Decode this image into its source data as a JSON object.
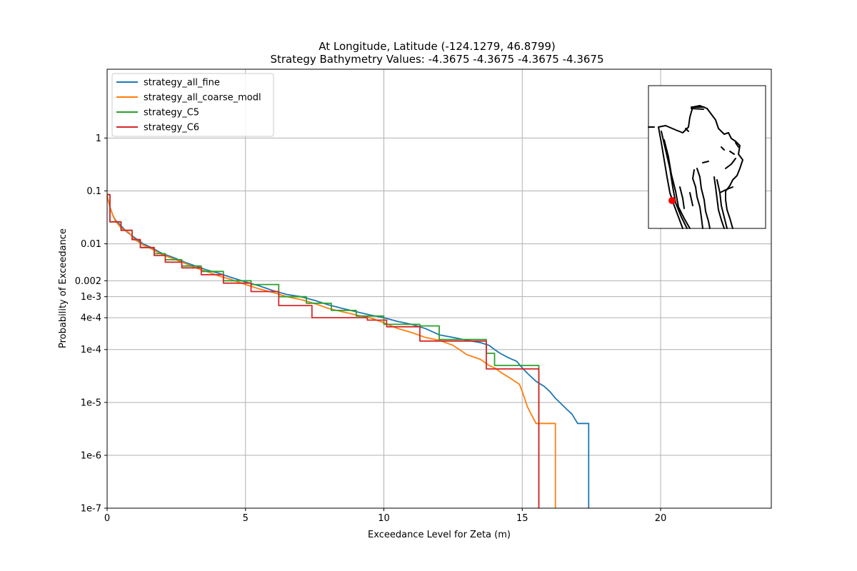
{
  "chart_data": {
    "type": "line",
    "title": "At Longitude, Latitude (-124.1279,  46.8799)",
    "subtitle": "Strategy Bathymetry Values:   -4.3675   -4.3675   -4.3675   -4.3675",
    "xlabel": "Exceedance Level for Zeta (m)",
    "ylabel": "Probability of Exceedance",
    "xlim": [
      0,
      24
    ],
    "ylim": [
      1e-07,
      20
    ],
    "yscale": "log",
    "grid": true,
    "legend_position": "top-left",
    "xticks": [
      {
        "value": 0,
        "label": "0"
      },
      {
        "value": 5,
        "label": "5"
      },
      {
        "value": 10,
        "label": "10"
      },
      {
        "value": 15,
        "label": "15"
      },
      {
        "value": 20,
        "label": "20"
      }
    ],
    "yticks": [
      {
        "value": 1e-07,
        "label": "1e-7"
      },
      {
        "value": 1e-06,
        "label": "1e-6"
      },
      {
        "value": 1e-05,
        "label": "1e-5"
      },
      {
        "value": 0.0001,
        "label": "1e-4"
      },
      {
        "value": 0.0004,
        "label": "4e-4"
      },
      {
        "value": 0.001,
        "label": "1e-3"
      },
      {
        "value": 0.002,
        "label": "0.002"
      },
      {
        "value": 0.01,
        "label": "0.01"
      },
      {
        "value": 0.1,
        "label": "0.1"
      },
      {
        "value": 1,
        "label": "1"
      }
    ],
    "series": [
      {
        "name": "strategy_all_fine",
        "color": "#1f77b4",
        "x": [
          0,
          0.1,
          0.2,
          0.3,
          0.5,
          0.7,
          1.0,
          1.3,
          1.6,
          2.0,
          2.4,
          2.8,
          3.2,
          3.6,
          4.0,
          4.5,
          5.0,
          5.5,
          6.0,
          6.5,
          7.0,
          7.5,
          8.0,
          8.5,
          9.0,
          9.5,
          10.0,
          10.5,
          11.0,
          11.5,
          12.0,
          12.5,
          13.0,
          13.5,
          13.8,
          14.0,
          14.2,
          14.5,
          14.8,
          15.0,
          15.2,
          15.5,
          15.8,
          16.0,
          16.2,
          16.4,
          16.6,
          16.8,
          17.0,
          17.2,
          17.4,
          17.4
        ],
        "y": [
          0.08,
          0.05,
          0.035,
          0.028,
          0.022,
          0.017,
          0.013,
          0.01,
          0.0085,
          0.0065,
          0.0055,
          0.0045,
          0.0038,
          0.0032,
          0.0028,
          0.0023,
          0.0019,
          0.0016,
          0.0013,
          0.0011,
          0.001,
          0.00085,
          0.0007,
          0.0006,
          0.00052,
          0.00045,
          0.0004,
          0.00034,
          0.0003,
          0.00025,
          0.00019,
          0.00017,
          0.00015,
          0.000135,
          0.00012,
          0.0001,
          8.5e-05,
          7e-05,
          6e-05,
          4.5e-05,
          3.5e-05,
          2.5e-05,
          2e-05,
          1.6e-05,
          1.2e-05,
          9.5e-06,
          7.5e-06,
          6e-06,
          4e-06,
          4e-06,
          4e-06,
          1e-07
        ]
      },
      {
        "name": "strategy_all_coarse_modl",
        "color": "#ff7f0e",
        "x": [
          0,
          0.1,
          0.2,
          0.3,
          0.5,
          0.8,
          1.0,
          1.3,
          1.6,
          2.0,
          2.4,
          2.8,
          3.2,
          3.6,
          4.0,
          4.5,
          5.0,
          5.5,
          6.0,
          6.5,
          7.0,
          7.5,
          8.0,
          8.5,
          9.0,
          9.5,
          10.0,
          10.5,
          11.0,
          11.5,
          12.0,
          12.5,
          13.0,
          13.5,
          13.8,
          14.0,
          14.3,
          14.6,
          14.9,
          15.0,
          15.2,
          15.5,
          15.8,
          16.0,
          16.2,
          16.2
        ],
        "y": [
          0.08,
          0.05,
          0.035,
          0.027,
          0.02,
          0.016,
          0.012,
          0.0095,
          0.008,
          0.0062,
          0.0052,
          0.0043,
          0.0035,
          0.003,
          0.0025,
          0.0021,
          0.0017,
          0.0014,
          0.0012,
          0.001,
          0.00088,
          0.00074,
          0.0006,
          0.00052,
          0.00045,
          0.0004,
          0.00032,
          0.00025,
          0.00021,
          0.00017,
          0.00015,
          0.00012,
          8e-05,
          6.5e-05,
          5e-05,
          4.5e-05,
          3.5e-05,
          2.8e-05,
          2.2e-05,
          1.6e-05,
          8e-06,
          4e-06,
          4e-06,
          4e-06,
          4e-06,
          1e-07
        ]
      },
      {
        "name": "strategy_C5",
        "color": "#2ca02c",
        "x": [
          0,
          0.1,
          0.1,
          0.5,
          0.5,
          0.9,
          0.9,
          1.2,
          1.2,
          1.7,
          1.7,
          2.1,
          2.1,
          2.7,
          2.7,
          3.4,
          3.4,
          4.2,
          4.2,
          5.2,
          5.2,
          6.2,
          6.2,
          7.2,
          7.2,
          8.1,
          8.1,
          9.0,
          9.0,
          10.0,
          10.0,
          11.3,
          11.3,
          12.0,
          12.0,
          13.7,
          13.7,
          14.0,
          14.0,
          15.6,
          15.6
        ],
        "y": [
          0.085,
          0.085,
          0.026,
          0.026,
          0.018,
          0.018,
          0.012,
          0.012,
          0.0085,
          0.0085,
          0.0065,
          0.0065,
          0.005,
          0.005,
          0.0038,
          0.0038,
          0.003,
          0.003,
          0.002,
          0.002,
          0.0017,
          0.0017,
          0.001,
          0.001,
          0.00075,
          0.00075,
          0.00055,
          0.00055,
          0.00043,
          0.00043,
          0.0003,
          0.0003,
          0.00028,
          0.00028,
          0.000155,
          0.000155,
          8.5e-05,
          8.5e-05,
          5e-05,
          5e-05,
          1e-07
        ]
      },
      {
        "name": "strategy_C6",
        "color": "#d62728",
        "x": [
          0,
          0.1,
          0.1,
          0.5,
          0.5,
          0.9,
          0.9,
          1.2,
          1.2,
          1.7,
          1.7,
          2.1,
          2.1,
          2.7,
          2.7,
          3.4,
          3.4,
          4.2,
          4.2,
          5.2,
          5.2,
          6.2,
          6.2,
          7.4,
          7.4,
          9.4,
          9.4,
          10.1,
          10.1,
          11.3,
          11.3,
          13.7,
          13.7,
          15.6,
          15.6
        ],
        "y": [
          0.085,
          0.085,
          0.026,
          0.026,
          0.018,
          0.018,
          0.012,
          0.012,
          0.0085,
          0.0085,
          0.006,
          0.006,
          0.0045,
          0.0045,
          0.0035,
          0.0035,
          0.0026,
          0.0026,
          0.0018,
          0.0018,
          0.00125,
          0.00125,
          0.00068,
          0.00068,
          0.0004,
          0.0004,
          0.00036,
          0.00036,
          0.00027,
          0.00027,
          0.000145,
          0.000145,
          4.3e-05,
          4.3e-05,
          1e-07
        ]
      }
    ],
    "inset_map": {
      "type": "map",
      "marker": {
        "longitude": -124.1279,
        "latitude": 46.8799
      },
      "marker_color": "#ff0000",
      "coastline_color": "#000000"
    }
  }
}
